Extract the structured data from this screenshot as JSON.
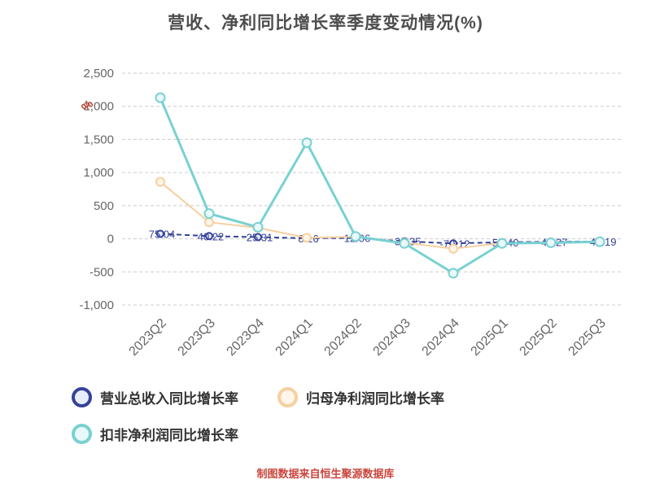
{
  "title": "营收、净利同比增长率季度变动情况(%)",
  "footer": "制图数据来自恒生聚源数据库",
  "y_axis_unit": "%",
  "colors": {
    "title_text": "#4d4d4d",
    "axis_label": "#666666",
    "gridline": "#cccccc",
    "unit_label": "#c0392b",
    "footer_text": "#c9463d",
    "legend_text": "#333333",
    "series_revenue": "#35429a",
    "series_net_profit": "#f7cfa0",
    "series_non_gaap": "#79d1d1"
  },
  "chart_data": {
    "type": "line",
    "title": "营收、净利同比增长率季度变动情况(%)",
    "categories": [
      "2023Q2",
      "2023Q3",
      "2023Q4",
      "2024Q1",
      "2024Q2",
      "2024Q3",
      "2024Q4",
      "2025Q1",
      "2025Q2",
      "2025Q3"
    ],
    "series": [
      {
        "name": "营业总收入同比增长率",
        "color": "#35429a",
        "marker_fill": "#e8ecf8",
        "line_dash": "6 4",
        "line_width": 2,
        "marker_r": 4,
        "values": [
          75.04,
          40.22,
          25.31,
          8.16,
          12.06,
          -38.35,
          -70.12,
          -52.4,
          -45.27,
          -40.19
        ],
        "labels": [
          "75.04",
          "40.22",
          "25.31",
          "8.16",
          "12.06",
          "-38.35",
          "-70.12",
          "-52.40",
          "-45.27",
          "-40.19"
        ]
      },
      {
        "name": "归母净利润同比增长率",
        "color": "#f7cfa0",
        "marker_fill": "#fff6e9",
        "line_dash": "",
        "line_width": 2,
        "marker_r": 5,
        "values": [
          860,
          250,
          165,
          15,
          30,
          -60,
          -150,
          -65,
          -55,
          -45
        ]
      },
      {
        "name": "扣非净利润同比增长率",
        "color": "#79d1d1",
        "marker_fill": "#e9f8f8",
        "line_dash": "",
        "line_width": 3,
        "marker_r": 5.5,
        "values": [
          2130,
          380,
          175,
          1450,
          35,
          -70,
          -520,
          -70,
          -60,
          -45
        ]
      }
    ],
    "ylim": [
      -1000,
      2500
    ],
    "yticks": [
      2500,
      2000,
      1500,
      1000,
      500,
      0,
      -500,
      -1000
    ],
    "grid": "horizontal-dashed",
    "legend_position": "bottom-left"
  }
}
